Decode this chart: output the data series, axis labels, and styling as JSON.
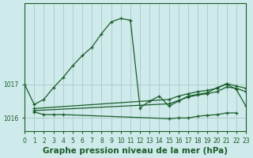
{
  "title": "Graphe pression niveau de la mer (hPa)",
  "bg_color": "#ceeaea",
  "grid_color": "#b0cccc",
  "line_color": "#1a5c2a",
  "x_min": 0,
  "x_max": 23,
  "y_min": 1015.6,
  "y_max": 1019.4,
  "yticks": [
    1016,
    1017
  ],
  "series": [
    {
      "x": [
        0,
        1,
        2,
        3,
        4,
        5,
        6,
        7,
        8,
        9,
        10,
        11,
        12,
        13,
        14,
        15,
        16,
        17,
        18,
        19,
        20,
        21,
        22,
        23
      ],
      "y": [
        1017.0,
        1016.4,
        1016.55,
        1016.9,
        1017.2,
        1017.55,
        1017.85,
        1018.1,
        1018.5,
        1018.85,
        1018.95,
        1018.9,
        1016.3,
        1016.5,
        1016.65,
        1016.35,
        1016.5,
        1016.65,
        1016.7,
        1016.75,
        1016.9,
        1017.0,
        1016.85,
        1016.35
      ]
    },
    {
      "x": [
        1,
        2,
        3,
        4,
        15,
        16,
        17,
        18,
        19,
        20,
        21,
        22
      ],
      "y": [
        1016.18,
        1016.1,
        1016.1,
        1016.1,
        1015.98,
        1016.0,
        1016.0,
        1016.05,
        1016.08,
        1016.1,
        1016.15,
        1016.15
      ]
    },
    {
      "x": [
        1,
        15,
        16,
        17,
        18,
        19,
        20,
        21,
        22,
        23
      ],
      "y": [
        1016.22,
        1016.42,
        1016.52,
        1016.62,
        1016.68,
        1016.72,
        1016.78,
        1016.92,
        1016.88,
        1016.78
      ]
    },
    {
      "x": [
        1,
        15,
        16,
        17,
        18,
        19,
        20,
        21,
        22,
        23
      ],
      "y": [
        1016.28,
        1016.55,
        1016.65,
        1016.72,
        1016.78,
        1016.82,
        1016.88,
        1017.02,
        1016.95,
        1016.88
      ]
    }
  ],
  "title_fontsize": 7.5,
  "tick_fontsize": 5.5,
  "marker": "+",
  "marker_size": 3.5,
  "line_width": 0.9
}
